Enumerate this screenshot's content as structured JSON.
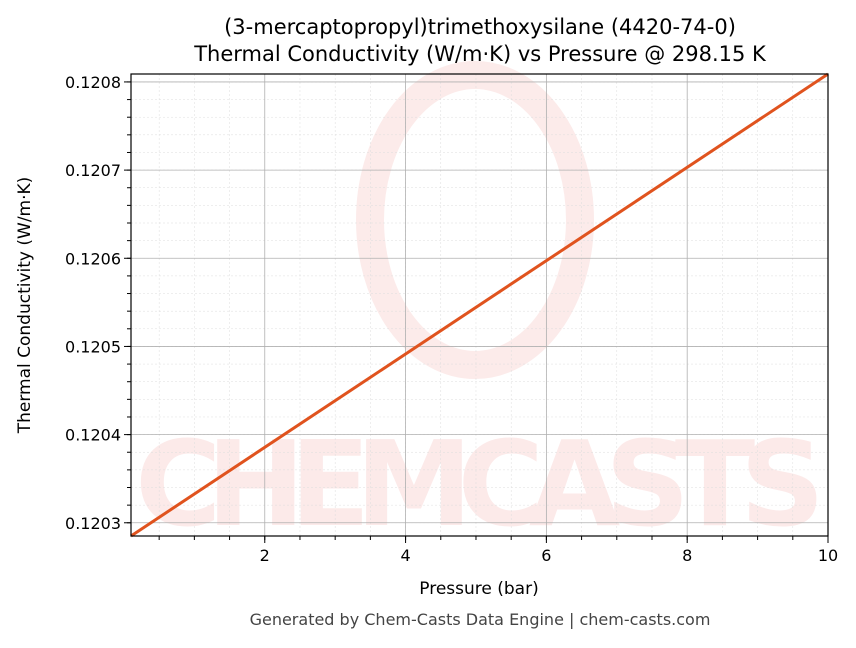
{
  "chart_data": {
    "type": "line",
    "title": "(3-mercaptopropyl)trimethoxysilane (4420-74-0)",
    "subtitle": "Thermal Conductivity (W/m·K) vs Pressure @ 298.15 K",
    "xlabel": "Pressure (bar)",
    "ylabel": "Thermal Conductivity (W/m·K)",
    "xlim": [
      0.1,
      10
    ],
    "ylim": [
      0.120285,
      0.120809
    ],
    "xticks": [
      2,
      4,
      6,
      8,
      10
    ],
    "xtick_labels": [
      "2",
      "4",
      "6",
      "8",
      "10"
    ],
    "yticks": [
      0.1203,
      0.1204,
      0.1205,
      0.1206,
      0.1207,
      0.1208
    ],
    "ytick_labels": [
      "0.1203",
      "0.1204",
      "0.1205",
      "0.1206",
      "0.1207",
      "0.1208"
    ],
    "grid": true,
    "series": [
      {
        "x": [
          0.1,
          10
        ],
        "y": [
          0.120285,
          0.120809
        ],
        "color": "#e0531e"
      }
    ]
  },
  "watermark": "CHEMCASTS",
  "footer": "Generated by Chem-Casts Data Engine | chem-casts.com"
}
